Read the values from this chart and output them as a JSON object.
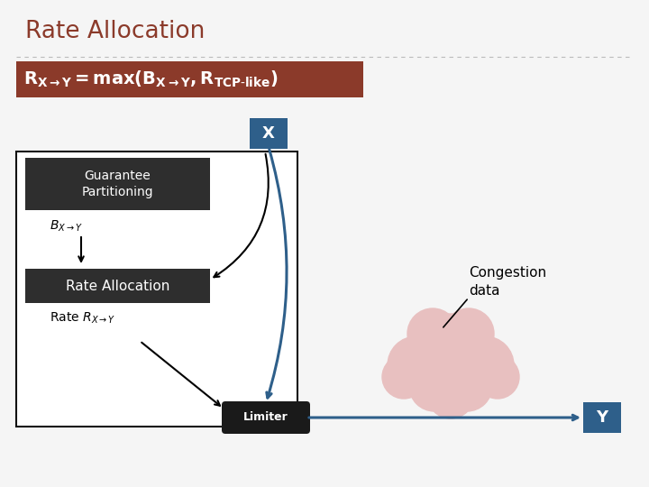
{
  "title": "Rate Allocation",
  "title_color": "#8B3A2A",
  "formula_bg": "#8B3A2A",
  "bg_color": "#F5F5F5",
  "node_X_color": "#2E5F8A",
  "node_Y_color": "#2E5F8A",
  "guarantee_box_color": "#2E2E2E",
  "guarantee_text": "Guarantee\nPartitioning",
  "rate_alloc_box_color": "#2E2E2E",
  "rate_alloc_text": "Rate Allocation",
  "limiter_box_color": "#1A1A1A",
  "limiter_text": "Limiter",
  "congestion_text": "Congestion\ndata",
  "outer_box_color": "#111111",
  "arrow_color": "#2E5F8A",
  "cloud_color": "#E8C0C0"
}
